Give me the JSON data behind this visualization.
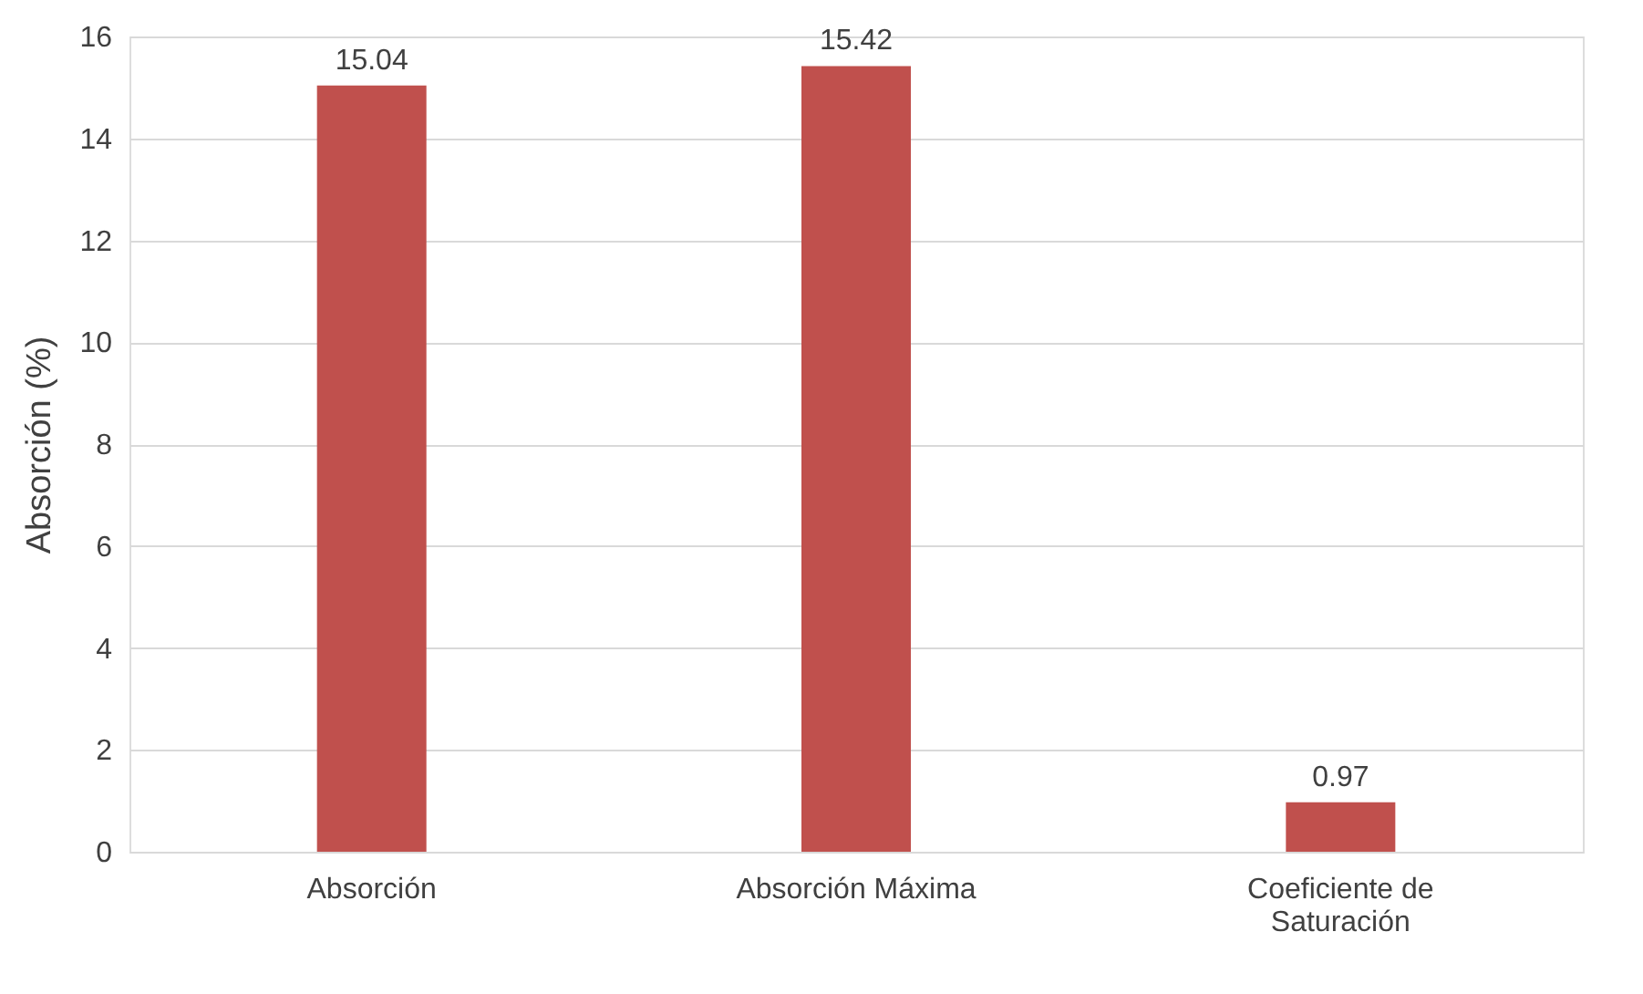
{
  "chart_data": {
    "type": "bar",
    "ylabel": "Absorción (%)",
    "categories": [
      "Absorción",
      "Absorción Máxima",
      "Coeficiente de Saturación"
    ],
    "values": [
      15.04,
      15.42,
      0.97
    ],
    "color": "#c0504d",
    "ylim": [
      0,
      16
    ],
    "yticks": [
      0,
      2,
      4,
      6,
      8,
      10,
      12,
      14,
      16
    ],
    "grid": "y",
    "data_labels": true
  }
}
